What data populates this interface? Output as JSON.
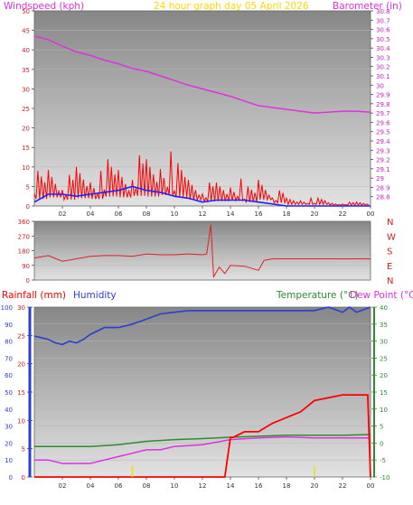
{
  "header": {
    "windspeed_label": "Windspeed (kph)",
    "graph_title": "24 hour graph day   05 April 2026",
    "barometer_label": "Barometer (in)"
  },
  "lower_header": {
    "rainfall_label": "Rainfall (mm)",
    "humidity_label": "Humidity",
    "temperature_label": "Temperature (°C)",
    "dewpoint_label": "Dew Point (°C)"
  },
  "compass": [
    "N",
    "W",
    "S",
    "E",
    "N"
  ],
  "colors": {
    "windspeed": "#ff0000",
    "avg_wind": "#2020ff",
    "barometer": "#e030e0",
    "direction": "#dd2222",
    "humidity": "#2a3fd0",
    "temperature": "#2e8b2e",
    "dewpoint": "#e030e0",
    "rain": "#ff0000",
    "title": "#ffd700"
  },
  "chart_data": [
    {
      "type": "line",
      "title": "24 hour graph day   05 April 2026",
      "xlabel": "",
      "x_ticks": [
        "02",
        "04",
        "06",
        "08",
        "10",
        "12",
        "14",
        "16",
        "18",
        "20",
        "22",
        "00"
      ],
      "ylabel": "Windspeed (kph)",
      "ylim": [
        0,
        50
      ],
      "y_ticks": [
        "0",
        "5",
        "10",
        "15",
        "20",
        "25",
        "30",
        "35",
        "40",
        "45",
        "50"
      ],
      "y2label": "Barometer (in)",
      "y2lim": [
        28.7,
        30.8
      ],
      "y2_ticks": [
        "28.8",
        "28.9",
        "29",
        "29.1",
        "29.2",
        "29.3",
        "29.4",
        "29.5",
        "29.6",
        "29.7",
        "29.8",
        "29.9",
        "30",
        "30.1",
        "30.2",
        "30.3",
        "30.4",
        "30.5",
        "30.6",
        "30.7",
        "30.8"
      ],
      "series": [
        {
          "name": "Windspeed (kph)",
          "axis": "left",
          "style": "gust",
          "x": [
            0,
            1,
            2,
            3,
            4,
            5,
            6,
            7,
            8,
            9,
            10,
            11,
            12,
            13,
            14,
            15,
            16,
            17,
            18,
            19,
            20,
            21,
            22,
            23,
            24
          ],
          "y": [
            9,
            11,
            8,
            10,
            9,
            12,
            11,
            13,
            12,
            14,
            11,
            8,
            6,
            6,
            7,
            5,
            8,
            4,
            2,
            2,
            2,
            1,
            1,
            1,
            1
          ]
        },
        {
          "axis": "left",
          "x": [
            0,
            1,
            2,
            3,
            4,
            5,
            6,
            7,
            8,
            9,
            10,
            11,
            12,
            13,
            14,
            15,
            16,
            17,
            18,
            19,
            20,
            21,
            22,
            23,
            24
          ],
          "y": [
            1,
            3,
            3,
            2.5,
            3,
            3.5,
            4,
            5,
            4,
            3.5,
            2.5,
            2,
            1,
            1.5,
            1.5,
            1.5,
            1,
            0.5,
            0,
            0,
            0,
            0,
            0,
            0,
            0
          ]
        },
        {
          "name": "Barometer (in)",
          "axis": "right",
          "x": [
            0,
            1,
            2,
            3,
            4,
            5,
            6,
            7,
            8,
            9,
            10,
            11,
            12,
            13,
            14,
            15,
            16,
            17,
            18,
            19,
            20,
            21,
            22,
            23,
            24
          ],
          "y": [
            30.53,
            30.49,
            30.42,
            30.36,
            30.32,
            30.27,
            30.23,
            30.18,
            30.15,
            30.1,
            30.05,
            30.0,
            29.96,
            29.92,
            29.88,
            29.83,
            29.78,
            29.76,
            29.74,
            29.72,
            29.7,
            29.71,
            29.72,
            29.72,
            29.71
          ]
        }
      ]
    },
    {
      "type": "line",
      "xlabel": "",
      "ylim": [
        0,
        360
      ],
      "y_ticks": [
        "0",
        "90",
        "180",
        "270",
        "360"
      ],
      "series": [
        {
          "axis": "left",
          "x": [
            0,
            1,
            2,
            3,
            4,
            5,
            6,
            7,
            8,
            9,
            10,
            11,
            12,
            12.3,
            12.6,
            12.8,
            13.2,
            13.6,
            14,
            15,
            16,
            16.4,
            16.7,
            17,
            18,
            20,
            22,
            24
          ],
          "y": [
            135,
            150,
            115,
            130,
            145,
            150,
            150,
            145,
            160,
            155,
            155,
            160,
            155,
            160,
            340,
            20,
            80,
            40,
            90,
            85,
            60,
            120,
            125,
            130,
            130,
            130,
            130,
            130
          ]
        }
      ]
    },
    {
      "type": "line",
      "xlabel": "",
      "x_ticks": [
        "02",
        "04",
        "06",
        "08",
        "10",
        "12",
        "14",
        "16",
        "18",
        "20",
        "22",
        "00"
      ],
      "ylabel": "Rainfall (mm)",
      "ylim": [
        0,
        30
      ],
      "y_ticks": [
        "0",
        "5",
        "10",
        "15",
        "20",
        "25",
        "30"
      ],
      "humidity_ticks": [
        "0",
        "10",
        "20",
        "30",
        "40",
        "50",
        "60",
        "70",
        "80",
        "90",
        "100"
      ],
      "y2label": "Temperature (°C)",
      "y2lim": [
        -10,
        40
      ],
      "y2_ticks": [
        "-10",
        "-5",
        "0",
        "5",
        "10",
        "15",
        "20",
        "25",
        "30",
        "35",
        "40"
      ],
      "series": [
        {
          "name": "Humidity",
          "axis": "humidity",
          "x": [
            0,
            0.5,
            1,
            1.5,
            2,
            2.5,
            3,
            3.5,
            4,
            5,
            6,
            7,
            8,
            9,
            10,
            11,
            12,
            14,
            16,
            18,
            20,
            21,
            22,
            22.5,
            23,
            24
          ],
          "y": [
            83,
            82,
            81,
            79,
            78,
            80,
            79,
            81,
            84,
            88,
            88,
            90,
            93,
            96,
            97,
            98,
            98,
            98,
            98,
            98,
            98,
            100,
            97,
            100,
            97,
            100
          ]
        },
        {
          "name": "Temperature (°C)",
          "axis": "right",
          "x": [
            0,
            2,
            4,
            6,
            8,
            10,
            12,
            14,
            16,
            18,
            20,
            22,
            24
          ],
          "y": [
            -1,
            -1,
            -1,
            -0.5,
            0.5,
            1,
            1.3,
            1.7,
            2,
            2.3,
            2.3,
            2.3,
            2.5
          ]
        },
        {
          "name": "Dew Point (°C)",
          "axis": "right",
          "x": [
            0,
            1,
            2,
            3,
            4,
            5,
            6,
            7,
            8,
            9,
            10,
            12,
            14,
            16,
            18,
            20,
            22,
            24
          ],
          "y": [
            -5,
            -5,
            -6,
            -6,
            -6,
            -5,
            -4,
            -3,
            -2,
            -2,
            -1,
            -0.5,
            1,
            1.5,
            1.8,
            1.5,
            1.5,
            1.5
          ]
        },
        {
          "name": "Rainfall (mm)",
          "axis": "left",
          "x": [
            0,
            13.6,
            14,
            14.2,
            15,
            16,
            17,
            18,
            19,
            20,
            22,
            23,
            23.8,
            24
          ],
          "y": [
            0,
            0,
            7,
            7,
            8,
            8,
            9.5,
            10.5,
            11.5,
            13.5,
            14.5,
            14.5,
            14.5,
            0
          ]
        },
        {
          "axis": "left",
          "style": "marker",
          "x": [
            7,
            20
          ],
          "y": [
            2,
            2
          ]
        }
      ]
    }
  ]
}
